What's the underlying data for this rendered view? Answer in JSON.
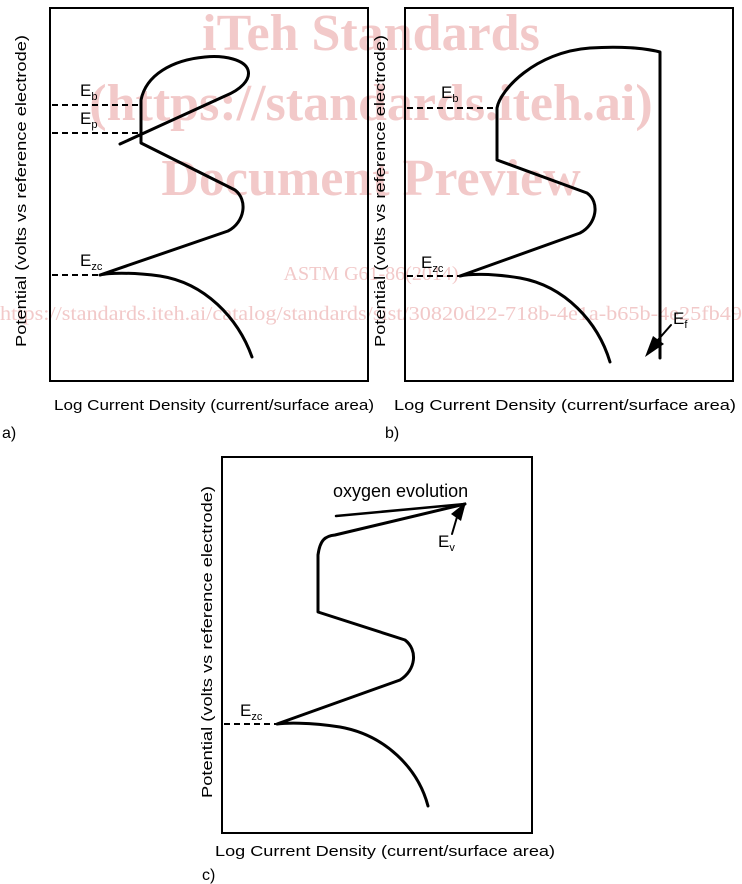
{
  "watermark": {
    "line1": "iTeh Standards",
    "line2": "(https://standards.iteh.ai)",
    "line3": "Document Preview",
    "line4": "ASTM G61-86(2014)",
    "line5": "https://standards.iteh.ai/catalog/standards/sist/30820d22-718b-4e1a-b65b-4e25fb49"
  },
  "panels": [
    {
      "letter": "a)",
      "xlabel": "Log Current Density (current/surface area)",
      "ylabel": "Potential (volts vs reference electrode)",
      "labels": {
        "eb": "E",
        "eb_sub": "b",
        "ep": "E",
        "ep_sub": "p",
        "ezc": "E",
        "ezc_sub": "zc"
      }
    },
    {
      "letter": "b)",
      "xlabel": "Log Current Density (current/surface area)",
      "ylabel": "Potential (volts vs reference electrode)",
      "labels": {
        "eb": "E",
        "eb_sub": "b",
        "ezc": "E",
        "ezc_sub": "zc",
        "ef": "E",
        "ef_sub": "f"
      }
    },
    {
      "letter": "c)",
      "xlabel": "Log Current Density (current/surface area)",
      "ylabel": "Potential (volts vs reference electrode)",
      "annotation": "oxygen evolution",
      "labels": {
        "ev": "E",
        "ev_sub": "v",
        "ezc": "E",
        "ezc_sub": "zc"
      }
    }
  ]
}
